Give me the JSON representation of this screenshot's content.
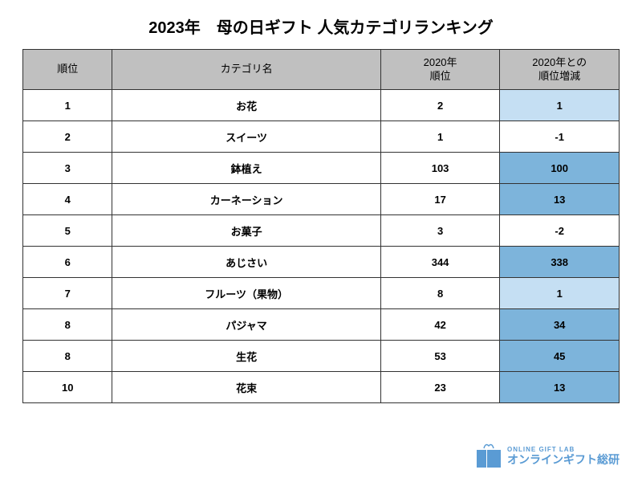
{
  "title": "2023年　母の日ギフト 人気カテゴリランキング",
  "columns": [
    "順位",
    "カテゴリ名",
    "2020年\n順位",
    "2020年との\n順位増減"
  ],
  "rows": [
    {
      "rank": "1",
      "category": "お花",
      "prev": "2",
      "diff": "1",
      "highlight": "light"
    },
    {
      "rank": "2",
      "category": "スイーツ",
      "prev": "1",
      "diff": "-1",
      "highlight": "none"
    },
    {
      "rank": "3",
      "category": "鉢植え",
      "prev": "103",
      "diff": "100",
      "highlight": "dark"
    },
    {
      "rank": "4",
      "category": "カーネーション",
      "prev": "17",
      "diff": "13",
      "highlight": "dark"
    },
    {
      "rank": "5",
      "category": "お菓子",
      "prev": "3",
      "diff": "-2",
      "highlight": "none"
    },
    {
      "rank": "6",
      "category": "あじさい",
      "prev": "344",
      "diff": "338",
      "highlight": "dark"
    },
    {
      "rank": "7",
      "category": "フルーツ（果物）",
      "prev": "8",
      "diff": "1",
      "highlight": "light"
    },
    {
      "rank": "8",
      "category": "パジャマ",
      "prev": "42",
      "diff": "34",
      "highlight": "dark"
    },
    {
      "rank": "8",
      "category": "生花",
      "prev": "53",
      "diff": "45",
      "highlight": "dark"
    },
    {
      "rank": "10",
      "category": "花束",
      "prev": "23",
      "diff": "13",
      "highlight": "dark"
    }
  ],
  "highlight_colors": {
    "none": "#ffffff",
    "light": "#c5dff3",
    "dark": "#7db4db"
  },
  "logo": {
    "en": "ONLINE GIFT LAB",
    "jp": "オンラインギフト総研",
    "color": "#5a9bd4"
  }
}
